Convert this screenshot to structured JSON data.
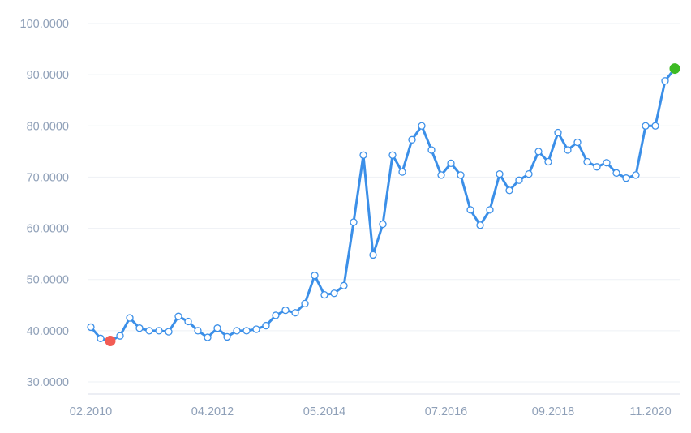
{
  "chart_data": {
    "type": "line",
    "title": "",
    "xlabel": "",
    "ylabel": "",
    "ylim": [
      30,
      100
    ],
    "yticks": [
      "30.0000",
      "40.0000",
      "50.0000",
      "60.0000",
      "70.0000",
      "80.0000",
      "90.0000",
      "100.0000"
    ],
    "ytick_values": [
      30,
      40,
      50,
      60,
      70,
      80,
      90,
      100
    ],
    "xticks": [
      {
        "label": "02.2010",
        "index": 0
      },
      {
        "label": "04.2012",
        "index": 12.5
      },
      {
        "label": "05.2014",
        "index": 24
      },
      {
        "label": "07.2016",
        "index": 36.5
      },
      {
        "label": "09.2018",
        "index": 47.5
      },
      {
        "label": "11.2020",
        "index": 57.5
      }
    ],
    "grid": true,
    "colors": {
      "line": "#3b8fe8",
      "point_stroke": "#3b8fe8",
      "min_marker": "#f25c54",
      "max_marker": "#3dba23"
    },
    "series": [
      {
        "values": [
          40.7,
          38.5,
          38.0,
          39.0,
          42.5,
          40.5,
          40.0,
          40.0,
          39.8,
          42.8,
          41.8,
          40.0,
          38.7,
          40.5,
          38.8,
          40.0,
          40.0,
          40.3,
          41.0,
          43.0,
          44.0,
          43.5,
          45.3,
          50.8,
          47.0,
          47.3,
          48.8,
          61.2,
          74.3,
          54.8,
          60.8,
          74.3,
          71.0,
          77.3,
          80.0,
          75.3,
          70.4,
          72.7,
          70.4,
          63.6,
          60.6,
          63.6,
          70.6,
          67.4,
          69.4,
          70.6,
          75.0,
          73.0,
          78.7,
          75.3,
          76.8,
          73.0,
          72.0,
          72.8,
          70.8,
          69.8,
          70.4,
          80.0,
          80.0,
          88.8,
          91.2
        ]
      }
    ],
    "min_index": 2,
    "max_index": 60
  }
}
